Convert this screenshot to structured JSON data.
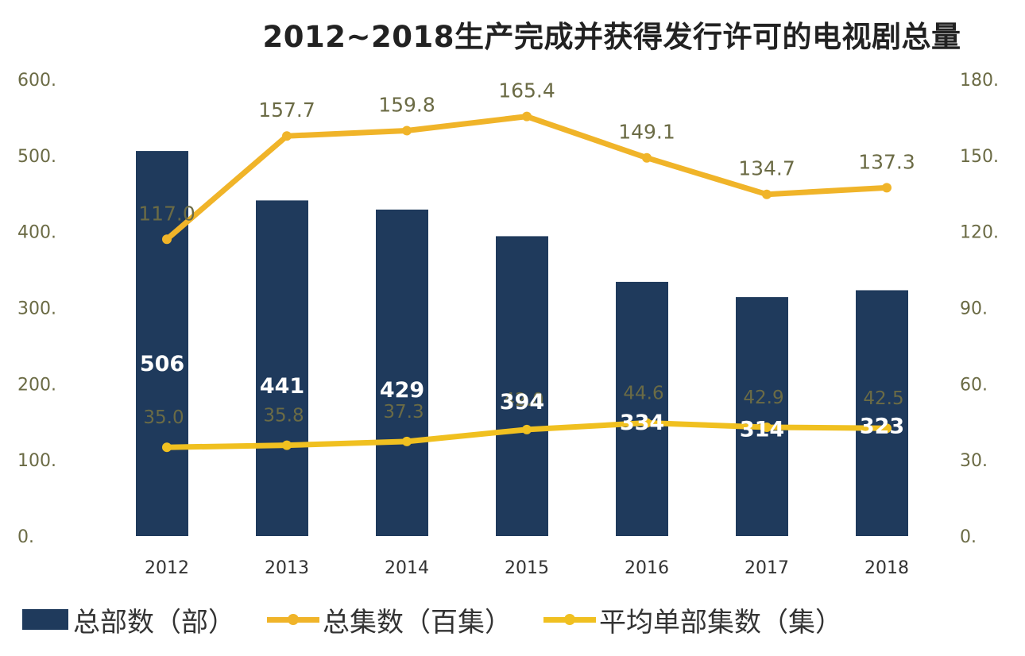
{
  "chart_data": {
    "type": "bar",
    "title": "2012~2018生产完成并获得发行许可的电视剧总量",
    "categories": [
      "2012",
      "2013",
      "2014",
      "2015",
      "2016",
      "2017",
      "2018"
    ],
    "series": [
      {
        "name": "总部数（部）",
        "type": "bar",
        "axis": "left",
        "values": [
          506,
          441,
          429,
          394,
          334,
          314,
          323
        ],
        "labels": [
          "506",
          "441",
          "429",
          "394",
          "334",
          "314",
          "323"
        ],
        "color": "#1f3a5c"
      },
      {
        "name": "总集数（百集）",
        "type": "line",
        "axis": "right",
        "values": [
          117.0,
          157.7,
          159.8,
          165.4,
          149.1,
          134.7,
          137.3
        ],
        "labels": [
          "117.0",
          "157.7",
          "159.8",
          "165.4",
          "149.1",
          "134.7",
          "137.3"
        ],
        "color": "#f0b429"
      },
      {
        "name": "平均单部集数（集）",
        "type": "line",
        "axis": "right",
        "values": [
          35.0,
          35.8,
          37.3,
          42.0,
          44.6,
          42.9,
          42.5
        ],
        "labels": [
          "35.0",
          "35.8",
          "37.3",
          "42.0",
          "44.6",
          "42.9",
          "42.5"
        ],
        "color": "#f0c020"
      }
    ],
    "y_left": {
      "range": [
        0,
        600
      ],
      "ticks": [
        "0.",
        "100.",
        "200.",
        "300.",
        "400.",
        "500.",
        "600."
      ]
    },
    "y_right": {
      "range": [
        0,
        180
      ],
      "ticks": [
        "0.",
        "30.",
        "60.",
        "90.",
        "120.",
        "150.",
        "180."
      ]
    },
    "grid": false,
    "legend_position": "bottom",
    "colors": {
      "bar": "#1f3a5c",
      "line_total": "#f0b429",
      "line_avg": "#f0c020",
      "tick_text": "#6b6b45",
      "line_label": "#6b6b45",
      "bar_label": "#ffffff"
    }
  }
}
